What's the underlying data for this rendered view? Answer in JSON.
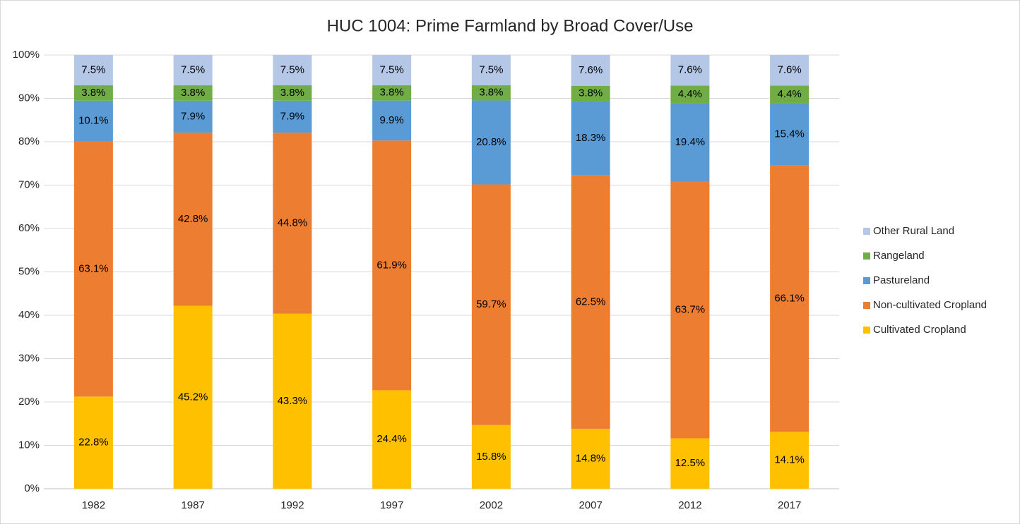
{
  "chart_data": {
    "type": "bar",
    "stacked": "percent",
    "title": "HUC 1004:  Prime Farmland by Broad Cover/Use",
    "categories": [
      "1982",
      "1987",
      "1992",
      "1997",
      "2002",
      "2007",
      "2012",
      "2017"
    ],
    "series": [
      {
        "name": "Cultivated Cropland",
        "color": "#ffc000",
        "values": [
          22.8,
          45.2,
          43.3,
          24.4,
          15.8,
          14.8,
          12.5,
          14.1
        ],
        "value_labels": [
          "22.8%",
          "45.2%",
          "43.3%",
          "24.4%",
          "15.8%",
          "14.8%",
          "12.5%",
          "14.1%"
        ]
      },
      {
        "name": "Non-cultivated Cropland",
        "color": "#ed7d31",
        "values": [
          63.1,
          42.8,
          44.8,
          61.9,
          59.7,
          62.5,
          63.7,
          66.1
        ],
        "value_labels": [
          "63.1%",
          "42.8%",
          "44.8%",
          "61.9%",
          "59.7%",
          "62.5%",
          "63.7%",
          "66.1%"
        ]
      },
      {
        "name": "Pastureland",
        "color": "#5b9bd5",
        "values": [
          10.1,
          7.9,
          7.9,
          9.9,
          20.8,
          18.3,
          19.4,
          15.4
        ],
        "value_labels": [
          "10.1%",
          "7.9%",
          "7.9%",
          "9.9%",
          "20.8%",
          "18.3%",
          "19.4%",
          "15.4%"
        ]
      },
      {
        "name": "Rangeland",
        "color": "#70ad47",
        "values": [
          3.8,
          3.8,
          3.8,
          3.8,
          3.8,
          3.8,
          4.4,
          4.4
        ],
        "value_labels": [
          "3.8%",
          "3.8%",
          "3.8%",
          "3.8%",
          "3.8%",
          "3.8%",
          "4.4%",
          "4.4%"
        ]
      },
      {
        "name": "Other Rural Land",
        "color": "#b4c7e7",
        "values": [
          7.5,
          7.5,
          7.5,
          7.5,
          7.5,
          7.6,
          7.6,
          7.6
        ],
        "value_labels": [
          "7.5%",
          "7.5%",
          "7.5%",
          "7.5%",
          "7.5%",
          "7.6%",
          "7.6%",
          "7.6%"
        ]
      }
    ],
    "ylim": [
      0,
      100
    ],
    "yticks": [
      {
        "value": 0,
        "label": "0%"
      },
      {
        "value": 10,
        "label": "10%"
      },
      {
        "value": 20,
        "label": "20%"
      },
      {
        "value": 30,
        "label": "30%"
      },
      {
        "value": 40,
        "label": "40%"
      },
      {
        "value": 50,
        "label": "50%"
      },
      {
        "value": 60,
        "label": "60%"
      },
      {
        "value": 70,
        "label": "70%"
      },
      {
        "value": 80,
        "label": "80%"
      },
      {
        "value": 90,
        "label": "90%"
      },
      {
        "value": 100,
        "label": "100%"
      }
    ],
    "grid": true,
    "legend": "right"
  }
}
